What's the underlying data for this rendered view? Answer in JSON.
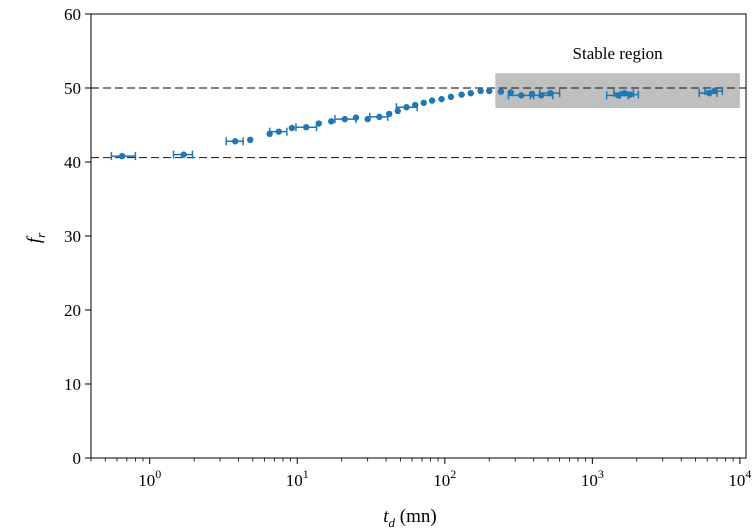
{
  "chart_data": {
    "type": "scatter",
    "x_scale": "log",
    "xlim": [
      0.4,
      11000
    ],
    "ylim": [
      0,
      60
    ],
    "x_ticks": [
      {
        "value": 1,
        "base": "10",
        "exp": "0"
      },
      {
        "value": 10,
        "base": "10",
        "exp": "1"
      },
      {
        "value": 100,
        "base": "10",
        "exp": "2"
      },
      {
        "value": 1000,
        "base": "10",
        "exp": "3"
      },
      {
        "value": 10000,
        "base": "10",
        "exp": "4"
      }
    ],
    "y_ticks": [
      {
        "value": 0,
        "label": "0"
      },
      {
        "value": 10,
        "label": "10"
      },
      {
        "value": 20,
        "label": "20"
      },
      {
        "value": 30,
        "label": "30"
      },
      {
        "value": 40,
        "label": "40"
      },
      {
        "value": 50,
        "label": "50"
      },
      {
        "value": 60,
        "label": "60"
      }
    ],
    "xlabel": {
      "main": "t",
      "sub": "d",
      "unit": " (mn)"
    },
    "ylabel": {
      "main": "f",
      "sub": "r"
    },
    "grid": false,
    "color": "#1f77b4",
    "reference_lines": [
      40.6,
      50.0
    ],
    "region": {
      "label": "Stable region",
      "x_start": 220,
      "x_end": 10000,
      "y_start": 47.3,
      "y_end": 52.0,
      "color": "#bfbfbf"
    },
    "points": [
      {
        "x": 0.65,
        "y": 40.8,
        "xerr_low": 0.55,
        "xerr_high": 0.8
      },
      {
        "x": 1.7,
        "y": 41.0,
        "xerr_low": 1.45,
        "xerr_high": 1.95
      },
      {
        "x": 3.8,
        "y": 42.8,
        "xerr_low": 3.3,
        "xerr_high": 4.3
      },
      {
        "x": 4.8,
        "y": 43.0
      },
      {
        "x": 6.5,
        "y": 43.8
      },
      {
        "x": 7.5,
        "y": 44.1,
        "xerr_low": 6.5,
        "xerr_high": 8.5
      },
      {
        "x": 9.2,
        "y": 44.6
      },
      {
        "x": 11.5,
        "y": 44.7,
        "xerr_low": 9.8,
        "xerr_high": 13.5
      },
      {
        "x": 14,
        "y": 45.2
      },
      {
        "x": 17,
        "y": 45.5
      },
      {
        "x": 21,
        "y": 45.8,
        "xerr_low": 18,
        "xerr_high": 25
      },
      {
        "x": 25,
        "y": 46.0
      },
      {
        "x": 30,
        "y": 45.8
      },
      {
        "x": 36,
        "y": 46.1,
        "xerr_low": 31,
        "xerr_high": 41
      },
      {
        "x": 42,
        "y": 46.5
      },
      {
        "x": 48,
        "y": 46.9
      },
      {
        "x": 55,
        "y": 47.4,
        "xerr_low": 47,
        "xerr_high": 65
      },
      {
        "x": 63,
        "y": 47.7
      },
      {
        "x": 72,
        "y": 48.0
      },
      {
        "x": 82,
        "y": 48.3
      },
      {
        "x": 95,
        "y": 48.5
      },
      {
        "x": 110,
        "y": 48.8
      },
      {
        "x": 130,
        "y": 49.1
      },
      {
        "x": 150,
        "y": 49.3
      },
      {
        "x": 175,
        "y": 49.6
      },
      {
        "x": 200,
        "y": 49.6
      },
      {
        "x": 240,
        "y": 49.5
      },
      {
        "x": 280,
        "y": 49.4
      },
      {
        "x": 330,
        "y": 49.0,
        "xerr_low": 270,
        "xerr_high": 400
      },
      {
        "x": 390,
        "y": 49.2
      },
      {
        "x": 450,
        "y": 49.0,
        "xerr_low": 380,
        "xerr_high": 540
      },
      {
        "x": 520,
        "y": 49.3,
        "xerr_low": 440,
        "xerr_high": 600
      },
      {
        "x": 1500,
        "y": 49.0,
        "xerr_low": 1250,
        "xerr_high": 1750
      },
      {
        "x": 1650,
        "y": 49.3,
        "xerr_low": 1400,
        "xerr_high": 1900
      },
      {
        "x": 1800,
        "y": 49.1,
        "xerr_low": 1550,
        "xerr_high": 2050
      },
      {
        "x": 6200,
        "y": 49.3,
        "xerr_low": 5300,
        "xerr_high": 7000
      },
      {
        "x": 6700,
        "y": 49.6,
        "xerr_low": 5800,
        "xerr_high": 7600
      }
    ]
  }
}
